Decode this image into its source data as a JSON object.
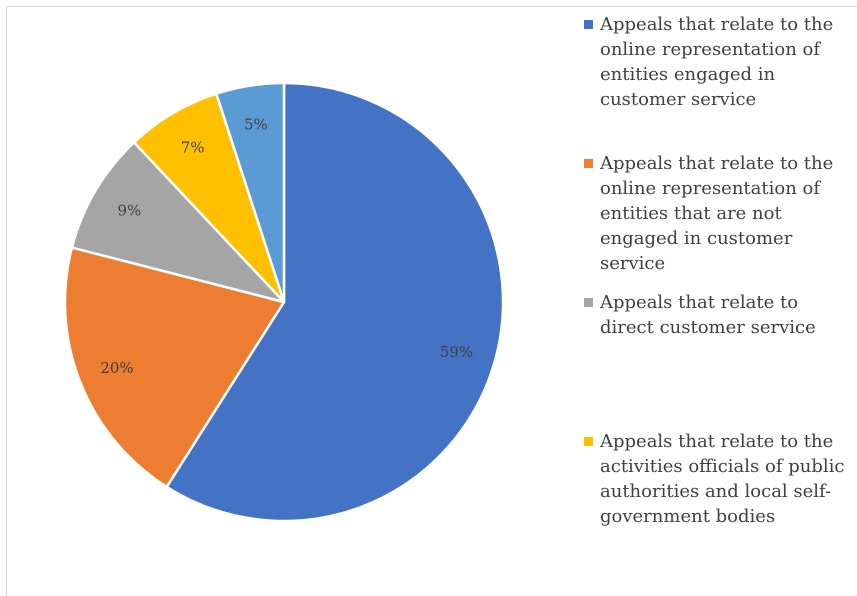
{
  "chart_data": {
    "type": "pie",
    "title": "",
    "start_angle_deg": 0,
    "direction": "clockwise",
    "legend_position": "right",
    "series": [
      {
        "label": "Appeals that relate to the online representation of entities engaged in customer service",
        "value": 59,
        "display": "59%",
        "color": "#4472c4"
      },
      {
        "label": "Appeals that relate to the online representation of entities that are not engaged in customer service",
        "value": 20,
        "display": "20%",
        "color": "#ed7d31"
      },
      {
        "label": "Appeals that relate to direct customer service",
        "value": 9,
        "display": "9%",
        "color": "#a5a5a5"
      },
      {
        "label": "Appeals that relate to the activities officials of public authorities and local self-government bodies",
        "value": 7,
        "display": "7%",
        "color": "#ffc000"
      },
      {
        "label": "",
        "value": 5,
        "display": "5%",
        "color": "#5b9bd5"
      }
    ]
  }
}
